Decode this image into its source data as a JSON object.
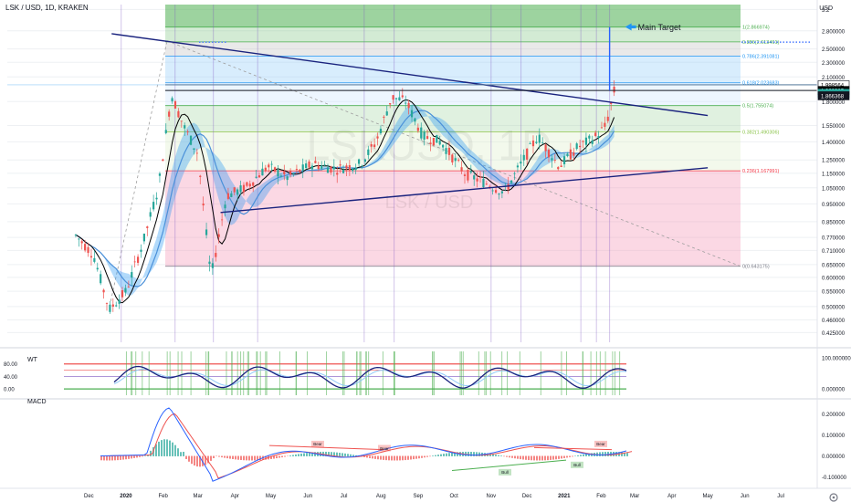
{
  "header": {
    "symbol_line": "LSK / USD, 1D, KRAKEN",
    "currency": "USD"
  },
  "watermark": {
    "big": "LSKUSD, 1D",
    "small": "LSK / USD"
  },
  "annotation": {
    "main_target": "Main Target"
  },
  "price_labels": [
    {
      "text": "1.998564",
      "value": 1.998564,
      "bg": "#ffffff",
      "fg": "#000000"
    },
    {
      "text": "1.928965",
      "value": 1.928965,
      "bg": "#000000",
      "fg": "#ffffff"
    },
    {
      "text": "15:05:06",
      "value": 1.895,
      "bg": "#26a69a",
      "fg": "#ffffff"
    },
    {
      "text": "1.866368",
      "value": 1.866368,
      "bg": "#131722",
      "fg": "#ffffff"
    }
  ],
  "fib_levels": [
    {
      "label": "1(2.866974)",
      "value": 2.866974,
      "color": "#4caf50"
    },
    {
      "label": "0.886(2.613461)",
      "value": 2.613461,
      "color": "#4caf50"
    },
    {
      "label": "0.786(2.391081)",
      "value": 2.391081,
      "color": "#2196f3"
    },
    {
      "label": "0.618(2.023683)",
      "value": 2.023683,
      "color": "#2196f3"
    },
    {
      "label": "0.5(1.755074)",
      "value": 1.755074,
      "color": "#4caf50"
    },
    {
      "label": "0.382(1.490306)",
      "value": 1.490306,
      "color": "#8bc34a"
    },
    {
      "label": "0.236(1.167991)",
      "value": 1.167991,
      "color": "#f23645"
    },
    {
      "label": "0(0.643175)",
      "value": 0.643175,
      "color": "#787b86"
    }
  ],
  "wt_panel": {
    "label": "WT",
    "ticks": [
      "80.00",
      "40.00",
      "0.00"
    ],
    "right_ticks": [
      "100.000000",
      "0.000000"
    ]
  },
  "macd_panel": {
    "label": "MACD",
    "right_ticks": [
      "0.200000",
      "0.100000",
      "0.000000",
      "-0.100000"
    ],
    "divergence_labels": [
      "Bear",
      "Bear",
      "Bull",
      "Bull",
      "Bear"
    ]
  },
  "chart_data": {
    "type": "candlestick",
    "title": "LSK / USD, 1D, KRAKEN",
    "x_axis_ticks": [
      "Dec",
      "2020",
      "Feb",
      "Mar",
      "Apr",
      "May",
      "Jun",
      "Jul",
      "Aug",
      "Sep",
      "Oct",
      "Nov",
      "Dec",
      "2021",
      "Feb",
      "Mar",
      "Apr",
      "May",
      "Jun",
      "Jul"
    ],
    "y_axis_ticks": [
      "3.2",
      "2.800000",
      "2.500000",
      "2.300000",
      "2.100000",
      "1.800000",
      "1.550000",
      "1.400000",
      "1.250000",
      "1.150000",
      "1.050000",
      "0.950000",
      "0.850000",
      "0.770000",
      "0.710000",
      "0.650000",
      "0.600000",
      "0.550000",
      "0.500000",
      "0.460000",
      "0.425000"
    ],
    "y_scale": "log",
    "ylim": [
      0.4,
      3.3
    ],
    "series": [
      {
        "name": "price",
        "points": [
          [
            "2019-11-20",
            0.78
          ],
          [
            "2019-12-05",
            0.69
          ],
          [
            "2019-12-18",
            0.49
          ],
          [
            "2020-01-01",
            0.55
          ],
          [
            "2020-01-15",
            0.74
          ],
          [
            "2020-01-28",
            1.05
          ],
          [
            "2020-02-08",
            1.88
          ],
          [
            "2020-02-18",
            1.55
          ],
          [
            "2020-03-01",
            1.3
          ],
          [
            "2020-03-12",
            0.6
          ],
          [
            "2020-03-25",
            1.0
          ],
          [
            "2020-04-10",
            1.05
          ],
          [
            "2020-04-28",
            1.2
          ],
          [
            "2020-05-15",
            1.12
          ],
          [
            "2020-06-05",
            1.22
          ],
          [
            "2020-06-25",
            1.18
          ],
          [
            "2020-07-15",
            1.22
          ],
          [
            "2020-07-28",
            1.4
          ],
          [
            "2020-08-10",
            1.85
          ],
          [
            "2020-08-22",
            1.8
          ],
          [
            "2020-09-05",
            1.45
          ],
          [
            "2020-09-20",
            1.4
          ],
          [
            "2020-10-10",
            1.15
          ],
          [
            "2020-10-28",
            1.08
          ],
          [
            "2020-11-12",
            1.02
          ],
          [
            "2020-11-28",
            1.25
          ],
          [
            "2020-12-10",
            1.45
          ],
          [
            "2020-12-28",
            1.2
          ],
          [
            "2021-01-12",
            1.35
          ],
          [
            "2021-01-28",
            1.45
          ],
          [
            "2021-02-05",
            1.55
          ],
          [
            "2021-02-12",
            1.93
          ]
        ]
      }
    ],
    "trendlines": [
      {
        "name": "descending resistance",
        "from": [
          "2019-12-20",
          2.75
        ],
        "to": [
          "2021-05-01",
          1.65
        ]
      },
      {
        "name": "ascending support",
        "from": [
          "2020-03-20",
          0.9
        ],
        "to": [
          "2021-05-01",
          1.19
        ]
      }
    ],
    "main_target_value": 2.866974
  }
}
